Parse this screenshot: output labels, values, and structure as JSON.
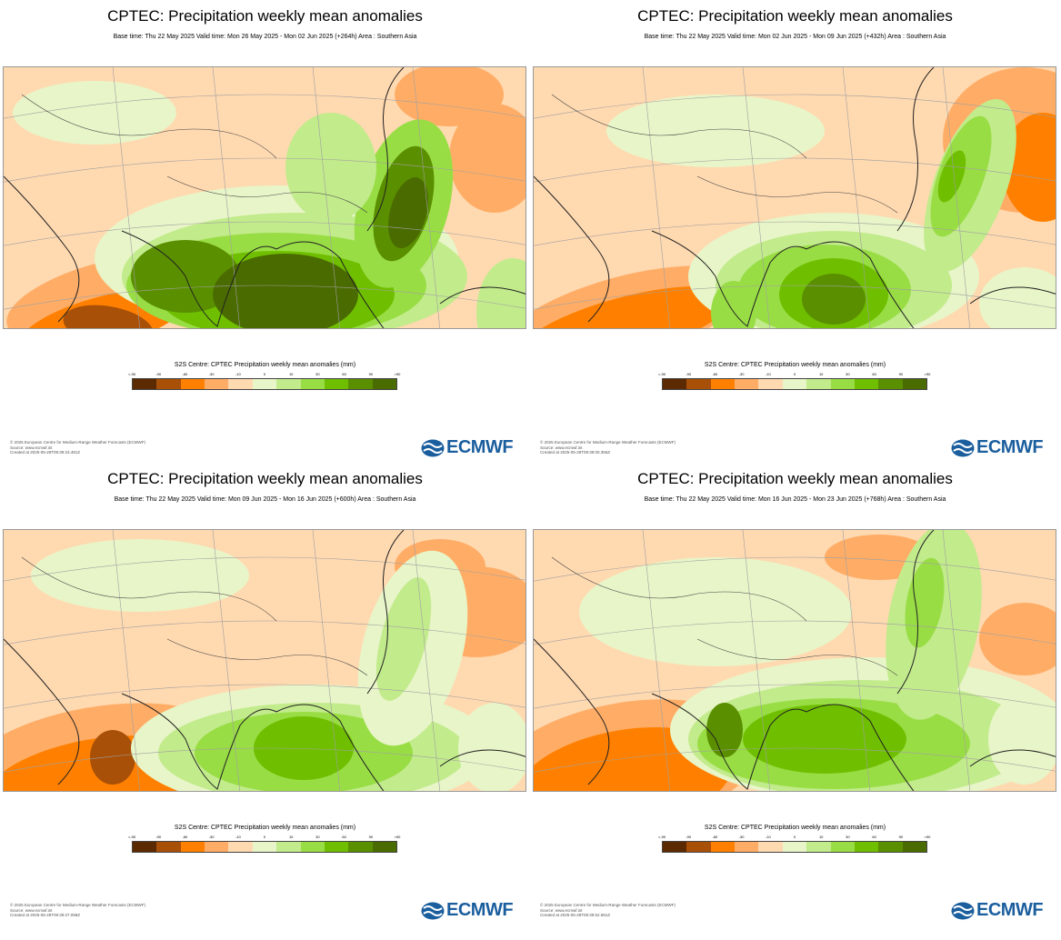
{
  "panels": [
    {
      "title": "CPTEC: Precipitation weekly mean anomalies",
      "subtitle": "Base time: Thu 22 May 2025 Valid time: Mon 26 May 2025 - Mon 02 Jun 2025 (+264h) Area : Southern Asia",
      "colorbar_title": "S2S Centre: CPTEC Precipitation weekly mean anomalies (mm)",
      "footer": [
        "© 2025 European Centre for Medium-Range Weather Forecasts (ECMWF)",
        "Source: www.ecmwf.int",
        "Created at 2025-05-28T09:39:23.481Z"
      ],
      "pattern": "strong-monsoon"
    },
    {
      "title": "CPTEC: Precipitation weekly mean anomalies",
      "subtitle": "Base time: Thu 22 May 2025 Valid time: Mon 02 Jun 2025 - Mon 09 Jun 2025 (+432h) Area : Southern Asia",
      "colorbar_title": "S2S Centre: CPTEC Precipitation weekly mean anomalies (mm)",
      "footer": [
        "© 2025 European Centre for Medium-Range Weather Forecasts (ECMWF)",
        "Source: www.ecmwf.int",
        "Created at 2025-05-28T09:39:00.356Z"
      ],
      "pattern": "bay-wet"
    },
    {
      "title": "CPTEC: Precipitation weekly mean anomalies",
      "subtitle": "Base time: Thu 22 May 2025 Valid time: Mon 09 Jun 2025 - Mon 16 Jun 2025 (+600h) Area : Southern Asia",
      "colorbar_title": "S2S Centre: CPTEC Precipitation weekly mean anomalies (mm)",
      "footer": [
        "© 2025 European Centre for Medium-Range Weather Forecasts (ECMWF)",
        "Source: www.ecmwf.int",
        "Created at 2025-05-28T09:39:27.098Z"
      ],
      "pattern": "moderate"
    },
    {
      "title": "CPTEC: Precipitation weekly mean anomalies",
      "subtitle": "Base time: Thu 22 May 2025 Valid time: Mon 16 Jun 2025 - Mon 23 Jun 2025 (+768h) Area : Southern Asia",
      "colorbar_title": "S2S Centre: CPTEC Precipitation weekly mean anomalies (mm)",
      "footer": [
        "© 2025 European Centre for Medium-Range Weather Forecasts (ECMWF)",
        "Source: www.ecmwf.int",
        "Created at 2025-05-28T09:39:52.681Z"
      ],
      "pattern": "wide-band"
    }
  ],
  "colorbar": {
    "ticks": [
      "<-90",
      "-90",
      "-60",
      "-30",
      "-10",
      "0",
      "10",
      "30",
      "60",
      "90",
      ">90"
    ],
    "colors": [
      "#5c2a00",
      "#a84f08",
      "#ff8000",
      "#ffad66",
      "#ffd9b0",
      "#e8f5c8",
      "#c2eb8c",
      "#99dd45",
      "#6fbf00",
      "#5a8f00",
      "#4a6b00"
    ]
  },
  "logo_text": "ECMWF",
  "colors": {
    "logo": "#1a5e9e",
    "land_base": "#ffd9b0"
  }
}
